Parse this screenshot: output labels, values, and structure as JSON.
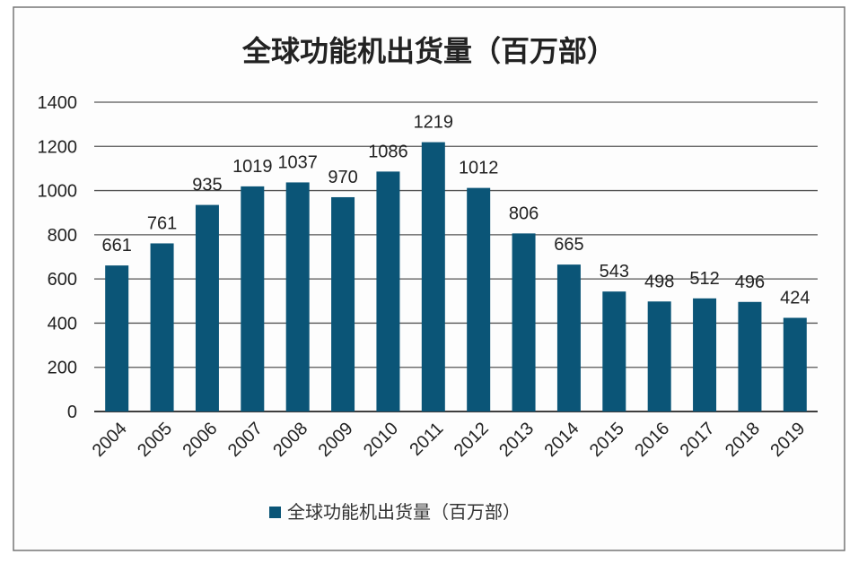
{
  "chart_data": {
    "type": "bar",
    "title": "全球功能机出货量（百万部）",
    "xlabel": "",
    "ylabel": "",
    "categories": [
      "2004",
      "2005",
      "2006",
      "2007",
      "2008",
      "2009",
      "2010",
      "2011",
      "2012",
      "2013",
      "2014",
      "2015",
      "2016",
      "2017",
      "2018",
      "2019"
    ],
    "series": [
      {
        "name": "全球功能机出货量（百万部）",
        "values": [
          661,
          761,
          935,
          1019,
          1037,
          970,
          1086,
          1219,
          1012,
          806,
          665,
          543,
          498,
          512,
          496,
          424
        ]
      }
    ],
    "ylim": [
      0,
      1400
    ],
    "yticks": [
      0,
      200,
      400,
      600,
      800,
      1000,
      1200,
      1400
    ],
    "grid": true,
    "legend": "bottom",
    "data_labels": true,
    "colors": {
      "bar": "#0b5577",
      "grid": "#555555",
      "text": "#222222"
    }
  }
}
